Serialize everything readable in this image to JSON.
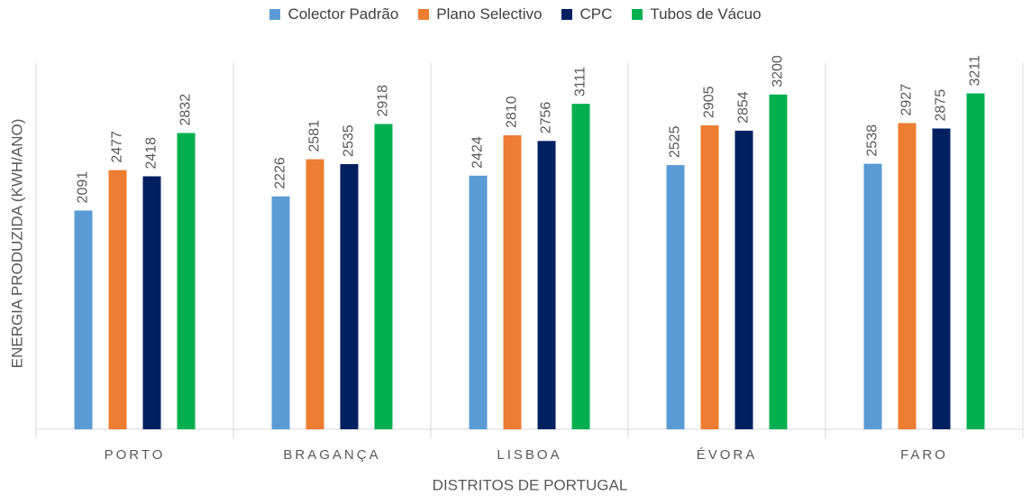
{
  "chart_data": {
    "type": "bar",
    "xlabel": "DISTRITOS DE PORTUGAL",
    "ylabel": "ENERGIA PRODUZIDA (KWH/ANO)",
    "categories": [
      "PORTO",
      "BRAGANÇA",
      "LISBOA",
      "ÉVORA",
      "FARO"
    ],
    "series": [
      {
        "name": "Colector Padrão",
        "color": "#5b9bd5",
        "values": [
          2091,
          2226,
          2424,
          2525,
          2538
        ]
      },
      {
        "name": "Plano Selectivo",
        "color": "#ed7d31",
        "values": [
          2477,
          2581,
          2810,
          2905,
          2927
        ]
      },
      {
        "name": "CPC",
        "color": "#002060",
        "values": [
          2418,
          2535,
          2756,
          2854,
          2875
        ]
      },
      {
        "name": "Tubos de Vácuo",
        "color": "#00b050",
        "values": [
          2832,
          2918,
          3111,
          3200,
          3211
        ]
      }
    ],
    "ylim": [
      0,
      3500
    ],
    "legend": "top"
  }
}
